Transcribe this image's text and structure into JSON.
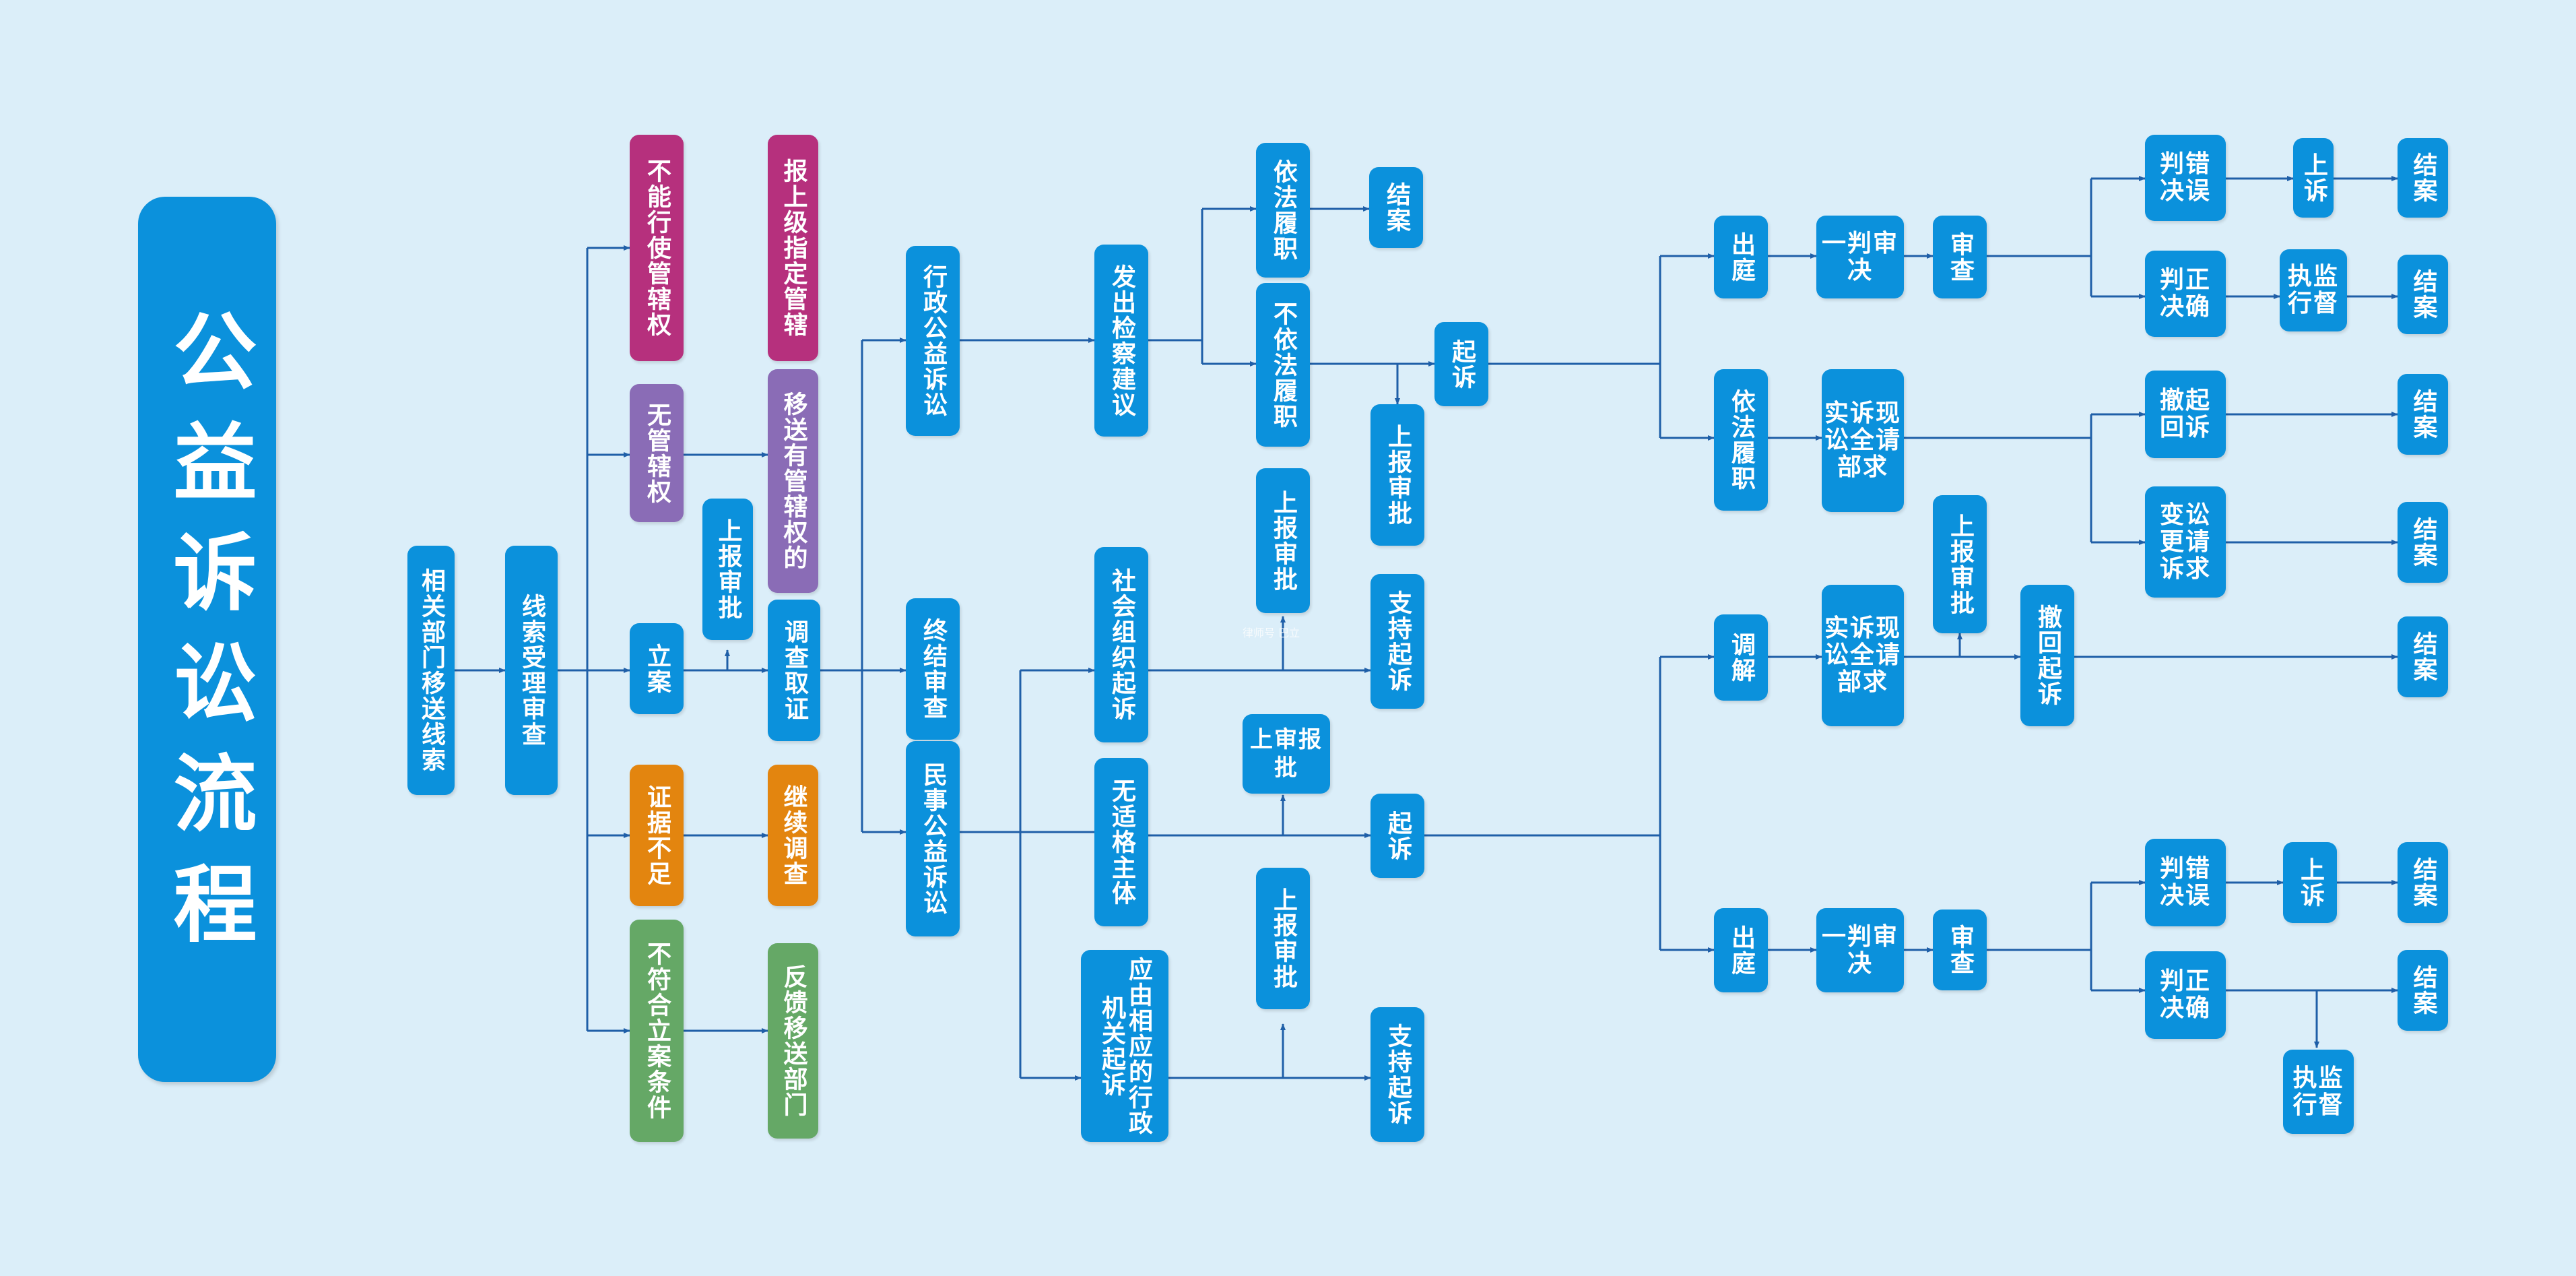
{
  "title": "公益诉讼流程",
  "watermark": "律师号  巴立",
  "colors": {
    "background": "#dbeef9",
    "blue": "#0b91dc",
    "purple": "#8a6cb6",
    "magenta": "#b6307d",
    "orange": "#e3850f",
    "green": "#65a866",
    "line": "#1f5fa8"
  },
  "nodes": {
    "n1": "相关部门移送线索",
    "n2": "线索受理审查",
    "n3": "不能行使管辖权",
    "n4": "报上级指定管辖",
    "n5": "无管辖权",
    "n6": "移送有管辖权的",
    "n7": "上报审批",
    "n8": "立案",
    "n9": "调查取证",
    "n10": "证据不足",
    "n11": "继续调查",
    "n12": "不符合立案条件",
    "n13": "反馈移送部门",
    "n14": "行政公益诉讼",
    "n15": "终结审查",
    "n16": "民事公益诉讼",
    "n17": "发出检察建议",
    "n18": "依法履职",
    "n19": "结案",
    "n20": "不依法履职",
    "n21": "起诉",
    "n22": "上报审批",
    "n23": "社会组织起诉",
    "n24": "上报审批",
    "n25": "支持起诉",
    "n26": "无适格主体",
    "n27": "上审报批",
    "n28": "起诉",
    "n29": "应由相应的行政机关起诉",
    "n30": "上报审批",
    "n31": "支持起诉",
    "n32": "出庭",
    "n33": "一判审决",
    "n34": "审查",
    "n35": "判错决误",
    "n36": "上诉",
    "n37": "结案",
    "n38": "判正决确",
    "n39": "执监行督",
    "n40": "结案",
    "n41": "依法履职",
    "n42": "实诉现讼全请部求",
    "n43": "撤起回诉",
    "n44": "结案",
    "n45": "变讼更请诉求",
    "n46": "结案",
    "n47": "上报审批",
    "n48": "调解",
    "n49": "实诉现讼全请部求",
    "n50": "撤回起诉",
    "n51": "结案",
    "n52": "出庭",
    "n53": "一判审决",
    "n54": "审查",
    "n55": "判错决误",
    "n56": "上诉",
    "n57": "结案",
    "n58": "判正决确",
    "n59": "结案",
    "n60": "执监行督"
  }
}
